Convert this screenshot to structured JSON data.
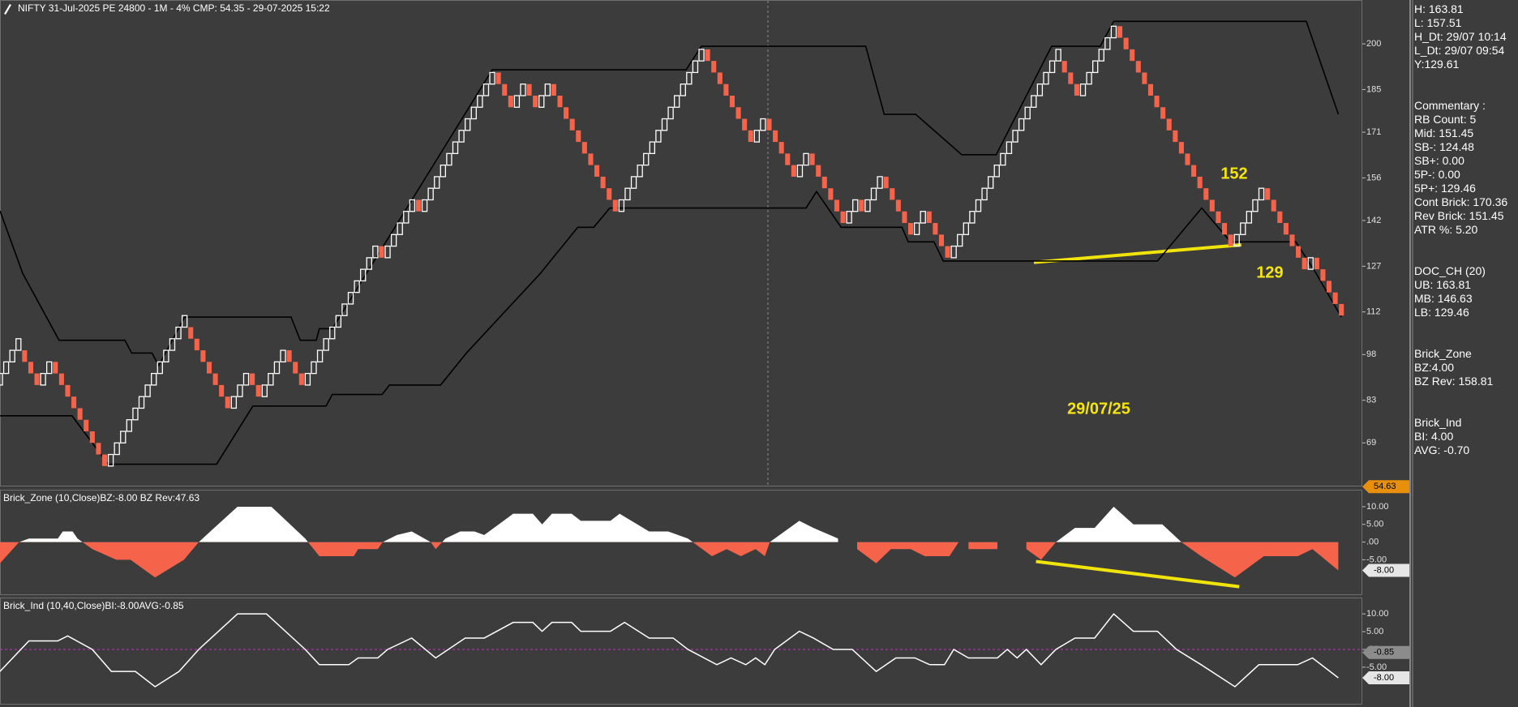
{
  "chart_data": [
    {
      "type": "renko",
      "title": "NIFTY 31-Jul-2025 PE 24800 - 1M - 4% CMP: 54.35 - 29-07-2025 15:22",
      "brick_size": 3.8,
      "up_color": "#ffffff",
      "down_color": "#f4634a",
      "values": [
        91.8,
        95.6,
        99.4,
        103.2,
        95.6,
        91.8,
        88,
        91.8,
        95.6,
        91.8,
        88,
        84.2,
        80.4,
        76.6,
        72.8,
        69,
        65.2,
        61.4,
        65.2,
        69,
        72.8,
        76.6,
        80.4,
        84.2,
        88,
        91.8,
        95.6,
        99.4,
        103.2,
        107,
        110.8,
        103.2,
        99.4,
        95.6,
        91.8,
        88,
        84.2,
        80.4,
        84.2,
        88,
        91.8,
        88,
        84.2,
        88,
        91.8,
        95.6,
        99.4,
        95.6,
        91.8,
        88,
        91.8,
        95.6,
        99.4,
        103.2,
        107,
        110.8,
        114.6,
        118.4,
        122.2,
        126,
        129.8,
        133.6,
        129.8,
        133.6,
        137.4,
        141.2,
        145,
        148.8,
        145,
        148.8,
        152.6,
        156.4,
        160.2,
        164,
        167.8,
        171.6,
        175.4,
        179.2,
        183,
        186.8,
        190.6,
        186.8,
        183,
        179.2,
        183,
        186.8,
        183,
        179.2,
        183,
        186.8,
        183,
        179.2,
        175.4,
        171.6,
        167.8,
        164,
        160.2,
        156.4,
        152.6,
        148.8,
        145,
        148.8,
        152.6,
        156.4,
        160.2,
        164,
        167.8,
        171.6,
        175.4,
        179.2,
        183,
        186.8,
        190.6,
        194.4,
        198.2,
        194.4,
        190.6,
        186.8,
        183,
        179.2,
        175.4,
        171.6,
        167.8,
        171.6,
        175.4,
        171.6,
        167.8,
        164,
        160.2,
        156.4,
        160.2,
        164,
        160.2,
        156.4,
        152.6,
        148.8,
        145,
        141.2,
        145,
        148.8,
        145,
        148.8,
        152.6,
        156.4,
        152.6,
        148.8,
        145,
        141.2,
        137.4,
        141.2,
        145,
        141.2,
        137.4,
        133.6,
        129.8,
        133.6,
        137.4,
        141.2,
        145,
        148.8,
        152.6,
        156.4,
        160.2,
        164,
        167.8,
        171.6,
        175.4,
        179.2,
        183,
        186.8,
        190.6,
        194.4,
        198.2,
        190.6,
        186.8,
        183,
        186.8,
        190.6,
        194.4,
        198.2,
        202,
        205.8,
        202,
        198.2,
        194.4,
        190.6,
        186.8,
        183,
        179.2,
        175.4,
        171.6,
        167.8,
        164,
        160.2,
        156.4,
        152.6,
        148.8,
        145,
        141.2,
        137.4,
        133.6,
        137.4,
        141.2,
        145,
        148.8,
        152.6,
        148.8,
        145,
        141.2,
        137.4,
        133.6,
        129.8,
        126,
        129.8,
        126,
        122.2,
        118.4,
        114.6,
        110.8
      ],
      "series": [
        {
          "color": "#000000",
          "x": [
            0,
            3.7,
            9.6,
            20.3,
            21.4,
            24.7,
            25.8,
            30,
            47.3,
            48.8,
            51.4,
            51.9,
            54,
            80,
            111.5,
            114,
            140.7,
            143.7,
            148.8,
            156.3,
            161.9,
            170.9,
            178.8,
            181,
            212.3,
            217.5
          ],
          "values": [
            145.2,
            124.6,
            102.7,
            102.7,
            98.5,
            98.5,
            94.4,
            110.3,
            110.3,
            102.7,
            102.7,
            106.5,
            106.5,
            191.5,
            191.5,
            199.2,
            199.2,
            176.9,
            176.9,
            163.6,
            163.6,
            199.2,
            199.2,
            207.4,
            207.4,
            176.9
          ]
        },
        {
          "color": "#000000",
          "x": [
            0,
            11.7,
            17.6,
            35.2,
            41.1,
            53,
            54,
            62.1,
            63.3,
            71.6,
            75.8,
            87.8,
            93.9,
            96.5,
            99.1,
            131,
            132.7,
            136.7,
            146.6,
            147.6,
            151.8,
            153.3,
            188.1,
            195.3,
            200,
            210.6,
            213.9,
            218
          ],
          "values": [
            77.9,
            77.9,
            62,
            62,
            81.1,
            81.1,
            84.9,
            84.9,
            88,
            88,
            98.5,
            124.6,
            139.8,
            139.8,
            146.1,
            146.1,
            151.5,
            139.8,
            139.8,
            135,
            135,
            128.7,
            128.7,
            146.1,
            135,
            135,
            124.6,
            110.3
          ]
        }
      ],
      "xlim": [
        0,
        221.4
      ],
      "ylim": [
        54.7,
        214.4
      ],
      "yticks": [
        69,
        83,
        98,
        112,
        127,
        142,
        156,
        171,
        185,
        200
      ],
      "last_price": 54.63,
      "last_price_color": "#e8900c",
      "annotations": [
        "152",
        "129",
        "29/07/25"
      ],
      "annotation_color": "#f5e50a"
    },
    {
      "type": "area",
      "title": "Brick_Zone (10,Close)BZ:-8.00 BZ Rev:47.63",
      "x": [
        0,
        3.1,
        4.7,
        9.4,
        10.2,
        11.8,
        12.6,
        15,
        18.9,
        21.2,
        25.2,
        29.9,
        32.3,
        38.6,
        44.1,
        49.6,
        51.9,
        57.5,
        58.2,
        61.4,
        62.2,
        64.5,
        66.9,
        70,
        70.8,
        72.4,
        74.8,
        77.1,
        78.7,
        83.4,
        86.6,
        88.1,
        89.7,
        92.9,
        94.4,
        99.2,
        100.7,
        105.5,
        108.6,
        111.8,
        115.7,
        118.1,
        120.4,
        122.8,
        124.3,
        125.1,
        127.5,
        129.9,
        132.2,
        136.2,
        137.7,
        139.3,
        142.4,
        144.8,
        148,
        150.3,
        154.3,
        155.8,
        156.6,
        157.4,
        162.1,
        164.5,
        166.8,
        169.2,
        171.6,
        174.7,
        177.9,
        181,
        184.2,
        188.9,
        192,
        195.2,
        200.7,
        205.4,
        210.9,
        213.3,
        217.5
      ],
      "values": [
        -6,
        0,
        1,
        1,
        3,
        3,
        1,
        -2,
        -5,
        -5,
        -10,
        -5,
        0,
        10,
        10,
        1,
        -4,
        -4,
        -2,
        -2,
        0,
        2,
        3,
        0,
        -2,
        1,
        3,
        3,
        2,
        8,
        8,
        5,
        8,
        8,
        6,
        6,
        8,
        3,
        3,
        1,
        -4,
        -2,
        -4,
        -2,
        -4,
        0,
        3,
        6,
        4,
        1,
        null,
        -2,
        -6,
        -2,
        -2,
        -4,
        -4,
        0,
        null,
        -2,
        -2,
        null,
        -2,
        -5,
        0,
        4,
        4,
        10,
        5,
        5,
        0,
        -4,
        -10,
        -4,
        -4,
        -2,
        -8
      ],
      "pos_color": "#ffffff",
      "neg_color": "#f4634a",
      "xlim": [
        0,
        221.4
      ],
      "ylim": [
        -15,
        14.8
      ],
      "yticks": [
        {
          "value": 10,
          "label": "10.00"
        },
        {
          "value": 5,
          "label": "5.00"
        },
        {
          "value": 0,
          "label": ".00"
        },
        {
          "value": -5,
          "label": "-5.00"
        }
      ],
      "markers": [
        {
          "value": -8,
          "label": "-8.00"
        }
      ],
      "marker_colors": [
        "#e6e6e6"
      ]
    },
    {
      "type": "line",
      "title": "Brick_Ind (10,40,Close)BI:-8.00AVG:-0.85",
      "x": [
        0,
        4.7,
        9.4,
        11,
        15,
        18.1,
        22,
        25.2,
        29.1,
        32.3,
        38.6,
        43.3,
        49.6,
        51.9,
        56.7,
        58.2,
        61.4,
        63,
        66.9,
        70.8,
        75.6,
        78.7,
        83.4,
        86.6,
        88.1,
        89.7,
        92.9,
        94.4,
        99.2,
        101.5,
        105.5,
        109.4,
        111.8,
        116.5,
        118.8,
        121.2,
        122.8,
        124.3,
        125.9,
        129.9,
        132.2,
        135.4,
        138.5,
        142.4,
        145.6,
        148.7,
        151.1,
        153.5,
        155,
        157.4,
        162.1,
        163.7,
        165.3,
        166.8,
        169.2,
        171.6,
        174.7,
        177.9,
        181,
        184.2,
        188.1,
        191.2,
        195.2,
        200.7,
        204.6,
        210.9,
        213.3,
        217.5
      ],
      "values": [
        -6.2,
        2.4,
        2.4,
        3.8,
        0,
        -6.2,
        -6.2,
        -10.5,
        -6.2,
        0,
        10,
        10,
        0,
        -4.3,
        -4.3,
        -2.4,
        -2.4,
        0,
        3.2,
        -2.4,
        3.2,
        3.2,
        7.6,
        7.6,
        5.1,
        7.6,
        7.6,
        5.1,
        5.1,
        7.6,
        3.2,
        3.2,
        0,
        -4.3,
        -2.4,
        -4.3,
        -2.4,
        -4.3,
        0,
        5.1,
        3.2,
        0,
        0,
        -6.2,
        -2.4,
        -2.4,
        -4.3,
        -4.3,
        0,
        -2.4,
        -2.4,
        0,
        -2.4,
        0,
        -4.3,
        0,
        3.2,
        3.2,
        10,
        5.1,
        5.1,
        0,
        -4.3,
        -10.5,
        -4.3,
        -4.3,
        -2.4,
        -8
      ],
      "color": "#ffffff",
      "hline": 0,
      "hline_color": "#b040b0",
      "xlim": [
        0,
        221.4
      ],
      "ylim": [
        -15.3,
        14.6
      ],
      "yticks": [
        {
          "value": 10,
          "label": "10.00"
        },
        {
          "value": 5,
          "label": "5.00"
        },
        {
          "value": 0,
          "label": ".00"
        },
        {
          "value": -5,
          "label": "-5.00"
        }
      ],
      "markers": [
        -0.85,
        {
          "value": -8,
          "label": "-8.00"
        }
      ],
      "marker_colors": [
        "#8c8c8c",
        "#e6e6e6"
      ]
    }
  ],
  "info_panel": [
    [
      "H: 163.81",
      "L: 157.51",
      "H_Dt: 29/07 10:14",
      "L_Dt: 29/07 09:54",
      "Y:129.61"
    ],
    [
      "Commentary :",
      "RB Count: 5",
      "Mid: 151.45",
      "SB-: 124.48",
      "SB+: 0.00",
      "5P-: 0.00",
      "5P+: 129.46",
      "Cont Brick: 170.36",
      "Rev Brick: 151.45",
      "ATR %: 5.20"
    ],
    [
      "DOC_CH (20)",
      "UB: 163.81",
      "MB: 146.63",
      "LB: 129.46"
    ],
    [
      "Brick_Zone",
      "BZ:4.00",
      "BZ Rev: 158.81"
    ],
    [
      "Brick_Ind",
      "BI: 4.00",
      "AVG: -0.70"
    ]
  ]
}
